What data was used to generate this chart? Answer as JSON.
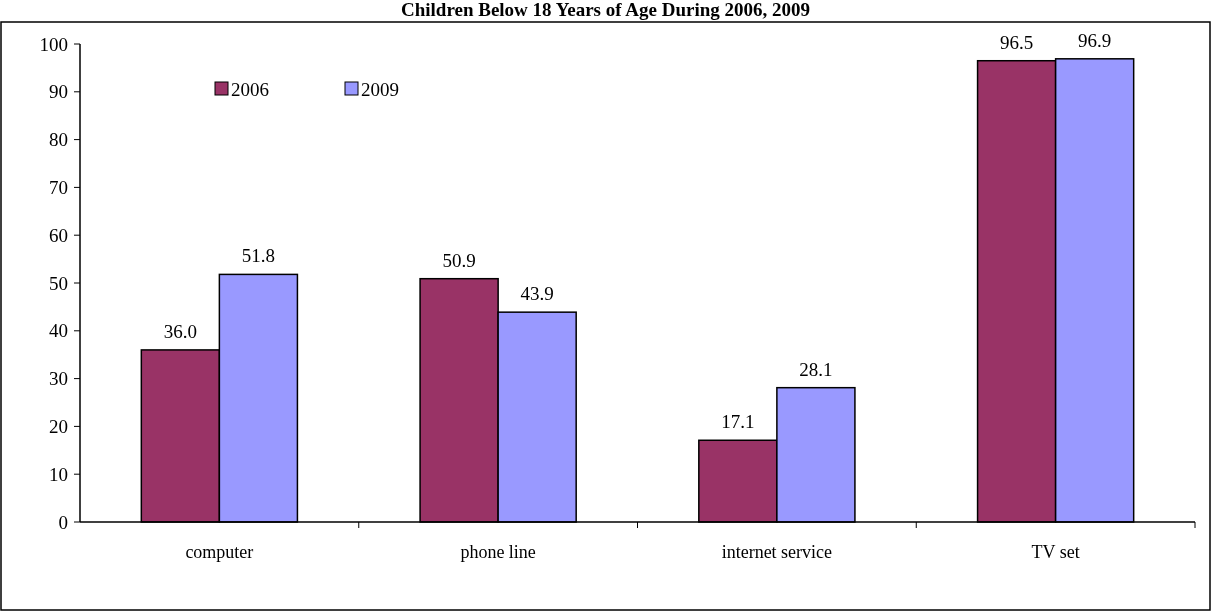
{
  "chart_data": {
    "type": "bar",
    "title": "Children Below 18 Years of Age During 2006, 2009",
    "categories": [
      "computer",
      "phone line",
      "internet service",
      "TV set"
    ],
    "series": [
      {
        "name": "2006",
        "color": "#993366",
        "values": [
          36.0,
          50.9,
          17.1,
          96.5
        ],
        "value_labels": [
          "36.0",
          "50.9",
          "17.1",
          "96.5"
        ]
      },
      {
        "name": "2009",
        "color": "#9999ff",
        "values": [
          51.8,
          43.9,
          28.1,
          96.9
        ],
        "value_labels": [
          "51.8",
          "43.9",
          "28.1",
          "96.9"
        ]
      }
    ],
    "ylim": [
      0,
      100
    ],
    "yticks": [
      0,
      10,
      20,
      30,
      40,
      50,
      60,
      70,
      80,
      90,
      100
    ],
    "grid": false,
    "legend": "top left"
  }
}
